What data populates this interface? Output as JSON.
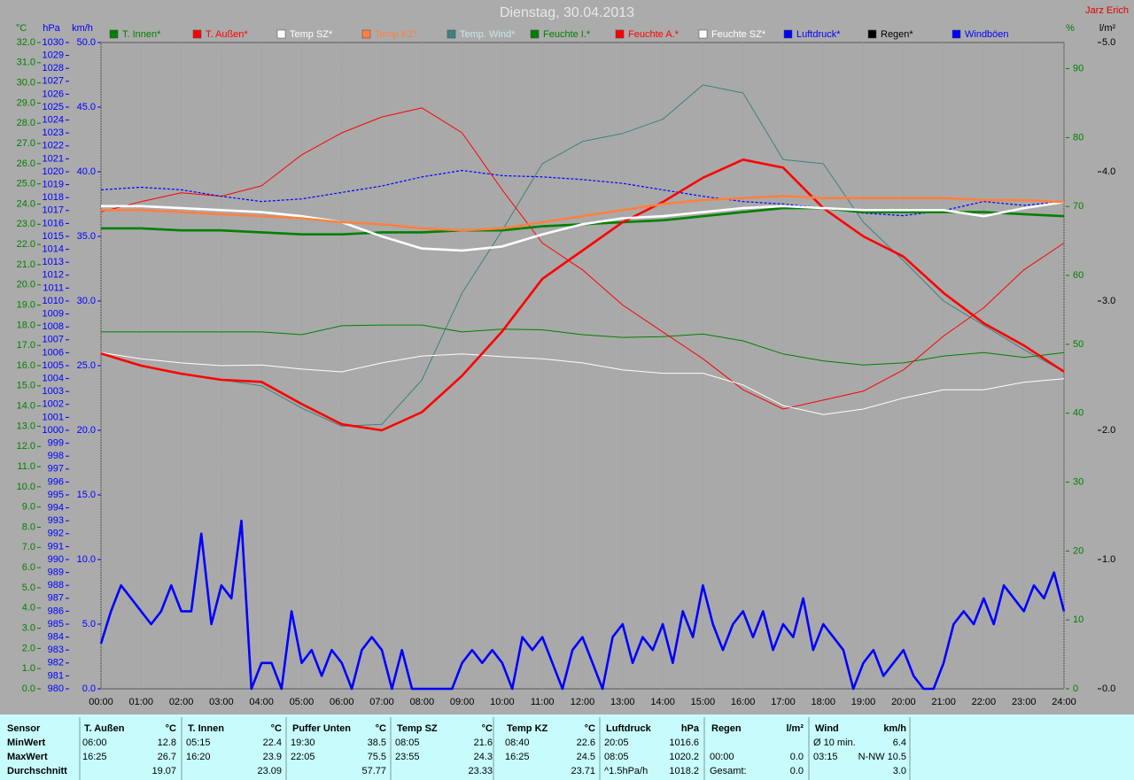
{
  "chart_data": {
    "type": "line",
    "title": "Dienstag, 30.04.2013",
    "author": "Jarz Erich",
    "xlim": [
      0,
      24
    ],
    "xticks": [
      {
        "value": 0,
        "label": "00:00"
      },
      {
        "value": 1,
        "label": "01:00"
      },
      {
        "value": 2,
        "label": "02:00"
      },
      {
        "value": 3,
        "label": "03:00"
      },
      {
        "value": 4,
        "label": "04:00"
      },
      {
        "value": 5,
        "label": "05:00"
      },
      {
        "value": 6,
        "label": "06:00"
      },
      {
        "value": 7,
        "label": "07:00"
      },
      {
        "value": 8,
        "label": "08:00"
      },
      {
        "value": 9,
        "label": "09:00"
      },
      {
        "value": 10,
        "label": "10:00"
      },
      {
        "value": 11,
        "label": "11:00"
      },
      {
        "value": 12,
        "label": "12:00"
      },
      {
        "value": 13,
        "label": "13:00"
      },
      {
        "value": 14,
        "label": "14:00"
      },
      {
        "value": 15,
        "label": "15:00"
      },
      {
        "value": 16,
        "label": "16:00"
      },
      {
        "value": 17,
        "label": "17:00"
      },
      {
        "value": 18,
        "label": "18:00"
      },
      {
        "value": 19,
        "label": "19:00"
      },
      {
        "value": 20,
        "label": "20:00"
      },
      {
        "value": 21,
        "label": "21:00"
      },
      {
        "value": 22,
        "label": "22:00"
      },
      {
        "value": 23,
        "label": "23:00"
      },
      {
        "value": 24,
        "label": "24:00"
      }
    ],
    "grid": true,
    "axes": [
      {
        "id": "y",
        "label": "°C",
        "color": "#008000",
        "lim": [
          0,
          32
        ],
        "ticks": [
          {
            "value": 0,
            "label": "0.0"
          },
          {
            "value": 1,
            "label": "1.0"
          },
          {
            "value": 2,
            "label": "2.0"
          },
          {
            "value": 3,
            "label": "3.0"
          },
          {
            "value": 4,
            "label": "4.0"
          },
          {
            "value": 5,
            "label": "5.0"
          },
          {
            "value": 6,
            "label": "6.0"
          },
          {
            "value": 7,
            "label": "7.0"
          },
          {
            "value": 8,
            "label": "8.0"
          },
          {
            "value": 9,
            "label": "9.0"
          },
          {
            "value": 10,
            "label": "10.0"
          },
          {
            "value": 11,
            "label": "11.0"
          },
          {
            "value": 12,
            "label": "12.0"
          },
          {
            "value": 13,
            "label": "13.0"
          },
          {
            "value": 14,
            "label": "14.0"
          },
          {
            "value": 15,
            "label": "15.0"
          },
          {
            "value": 16,
            "label": "16.0"
          },
          {
            "value": 17,
            "label": "17.0"
          },
          {
            "value": 18,
            "label": "18.0"
          },
          {
            "value": 19,
            "label": "19.0"
          },
          {
            "value": 20,
            "label": "20.0"
          },
          {
            "value": 21,
            "label": "21.0"
          },
          {
            "value": 22,
            "label": "22.0"
          },
          {
            "value": 23,
            "label": "23.0"
          },
          {
            "value": 24,
            "label": "24.0"
          },
          {
            "value": 25,
            "label": "25.0"
          },
          {
            "value": 26,
            "label": "26.0"
          },
          {
            "value": 27,
            "label": "27.0"
          },
          {
            "value": 28,
            "label": "28.0"
          },
          {
            "value": 29,
            "label": "29.0"
          },
          {
            "value": 30,
            "label": "30.0"
          },
          {
            "value": 31,
            "label": "31.0"
          },
          {
            "value": 32,
            "label": "32.0"
          }
        ]
      },
      {
        "id": "y2",
        "label": "hPa",
        "color": "#0000ff",
        "lim": [
          980,
          1030
        ],
        "ticks": [
          980,
          981,
          982,
          983,
          984,
          985,
          986,
          987,
          988,
          989,
          990,
          991,
          992,
          993,
          994,
          995,
          996,
          997,
          998,
          999,
          1000,
          1001,
          1002,
          1003,
          1004,
          1005,
          1006,
          1007,
          1008,
          1009,
          1010,
          1011,
          1012,
          1013,
          1014,
          1015,
          1016,
          1017,
          1018,
          1019,
          1020,
          1021,
          1022,
          1023,
          1024,
          1025,
          1026,
          1027,
          1028,
          1029,
          1030
        ]
      },
      {
        "id": "y3",
        "label": "km/h",
        "color": "#0000ff",
        "lim": [
          0,
          50
        ],
        "ticks": [
          {
            "value": 0,
            "label": "0.0"
          },
          {
            "value": 5,
            "label": "5.0"
          },
          {
            "value": 10,
            "label": "10.0"
          },
          {
            "value": 15,
            "label": "15.0"
          },
          {
            "value": 20,
            "label": "20.0"
          },
          {
            "value": 25,
            "label": "25.0"
          },
          {
            "value": 30,
            "label": "30.0"
          },
          {
            "value": 35,
            "label": "35.0"
          },
          {
            "value": 40,
            "label": "40.0"
          },
          {
            "value": 45,
            "label": "45.0"
          },
          {
            "value": 50,
            "label": "50.0"
          }
        ]
      },
      {
        "id": "y4",
        "label": "%",
        "color": "#008000",
        "lim": [
          0,
          93.8
        ],
        "ticks": [
          0,
          10,
          20,
          30,
          40,
          50,
          60,
          70,
          80,
          90
        ]
      },
      {
        "id": "y5",
        "label": "l/m²",
        "color": "#000000",
        "lim": [
          0,
          5
        ],
        "ticks": [
          {
            "value": 0,
            "label": "0.0"
          },
          {
            "value": 1,
            "label": "1.0"
          },
          {
            "value": 2,
            "label": "2.0"
          },
          {
            "value": 3,
            "label": "3.0"
          },
          {
            "value": 4,
            "label": "4.0"
          },
          {
            "value": 5,
            "label": "5.0"
          }
        ]
      }
    ],
    "x": [
      0,
      1,
      2,
      3,
      4,
      5,
      6,
      7,
      8,
      9,
      10,
      11,
      12,
      13,
      14,
      15,
      16,
      17,
      18,
      19,
      20,
      21,
      22,
      23,
      24
    ],
    "series": [
      {
        "name": "T. Innen*",
        "color": "#008000",
        "axis": "y",
        "style": "thick",
        "values": [
          22.8,
          22.8,
          22.7,
          22.7,
          22.6,
          22.5,
          22.5,
          22.6,
          22.6,
          22.7,
          22.7,
          22.9,
          23.0,
          23.1,
          23.2,
          23.4,
          23.6,
          23.8,
          23.8,
          23.6,
          23.6,
          23.6,
          23.6,
          23.5,
          23.4
        ]
      },
      {
        "name": "T. Außen*",
        "color": "#ff0000",
        "axis": "y",
        "style": "thick",
        "values": [
          16.6,
          16.0,
          15.6,
          15.3,
          15.2,
          14.1,
          13.1,
          12.8,
          13.7,
          15.5,
          17.7,
          20.3,
          21.7,
          23.1,
          24.1,
          25.3,
          26.2,
          25.8,
          23.8,
          22.4,
          21.4,
          19.6,
          18.1,
          17.0,
          15.7
        ]
      },
      {
        "name": "Temp SZ*",
        "color": "#ffffff",
        "axis": "y",
        "style": "thick",
        "values": [
          23.9,
          23.9,
          23.8,
          23.7,
          23.6,
          23.4,
          23.1,
          22.4,
          21.8,
          21.7,
          21.9,
          22.5,
          23.0,
          23.3,
          23.4,
          23.6,
          23.8,
          23.9,
          23.8,
          23.7,
          23.7,
          23.7,
          23.4,
          23.8,
          24.1
        ]
      },
      {
        "name": "Temp KZ*",
        "color": "#ff8040",
        "axis": "y",
        "style": "thick",
        "values": [
          23.7,
          23.7,
          23.6,
          23.5,
          23.4,
          23.3,
          23.1,
          23.0,
          22.8,
          22.7,
          22.8,
          23.1,
          23.4,
          23.7,
          24.0,
          24.2,
          24.3,
          24.4,
          24.3,
          24.3,
          24.3,
          24.3,
          24.2,
          24.2,
          24.1
        ]
      },
      {
        "name": "Temp. Wind*",
        "color": "#408080",
        "axis": "y",
        "style": "thin",
        "values": [
          16.6,
          16.0,
          15.6,
          15.3,
          15.0,
          13.9,
          13.0,
          13.1,
          15.3,
          19.6,
          22.7,
          26.0,
          27.1,
          27.5,
          28.2,
          29.9,
          29.5,
          26.2,
          26.0,
          23.1,
          21.2,
          19.2,
          18.0,
          16.8,
          15.7
        ]
      },
      {
        "name": "Feuchte I.*",
        "color": "#008000",
        "axis": "y4",
        "style": "thin",
        "values": [
          51.8,
          51.8,
          51.8,
          51.8,
          51.8,
          51.4,
          52.7,
          52.8,
          52.8,
          51.8,
          52.2,
          52.1,
          51.4,
          51.0,
          51.1,
          51.5,
          50.5,
          48.6,
          47.6,
          47.0,
          47.3,
          48.3,
          48.8,
          48.1,
          48.8
        ]
      },
      {
        "name": "Feuchte A.*",
        "color": "#ff0000",
        "axis": "y4",
        "style": "thin",
        "values": [
          69.2,
          70.7,
          72.0,
          71.5,
          73.0,
          77.5,
          80.7,
          83.0,
          84.3,
          80.7,
          72.4,
          64.7,
          60.8,
          55.7,
          51.8,
          47.9,
          43.4,
          40.6,
          41.9,
          43.2,
          46.3,
          51.2,
          55.3,
          60.8,
          64.7
        ]
      },
      {
        "name": "Feuchte SZ*",
        "color": "#ffffff",
        "axis": "y4",
        "style": "thin",
        "values": [
          48.8,
          47.9,
          47.3,
          46.9,
          47.0,
          46.4,
          46.0,
          47.3,
          48.3,
          48.6,
          48.2,
          47.9,
          47.3,
          46.3,
          45.8,
          45.8,
          44.1,
          41.1,
          39.8,
          40.6,
          42.2,
          43.4,
          43.4,
          44.5,
          45.0
        ]
      },
      {
        "name": "Luftdruck*",
        "color": "#0000ff",
        "axis": "y2",
        "style": "dotted",
        "values": [
          1018.6,
          1018.8,
          1018.6,
          1018.1,
          1017.7,
          1017.9,
          1018.4,
          1018.9,
          1019.6,
          1020.1,
          1019.7,
          1019.6,
          1019.4,
          1019.1,
          1018.6,
          1018.1,
          1017.7,
          1017.5,
          1017.2,
          1016.8,
          1016.6,
          1017.0,
          1017.7,
          1017.4,
          1017.7
        ]
      },
      {
        "name": "Regen*",
        "color": "#000000",
        "axis": "y5",
        "style": "thin"
      },
      {
        "name": "Windböen",
        "color": "#0000ff",
        "axis": "y3",
        "style": "thick",
        "x": [
          0,
          0.25,
          0.5,
          0.75,
          1,
          1.25,
          1.5,
          1.75,
          2,
          2.25,
          2.5,
          2.75,
          3,
          3.25,
          3.5,
          3.75,
          4,
          4.25,
          4.5,
          4.75,
          5,
          5.25,
          5.5,
          5.75,
          6,
          6.25,
          6.5,
          6.75,
          7,
          7.25,
          7.5,
          7.75,
          8,
          8.25,
          8.5,
          8.75,
          9,
          9.25,
          9.5,
          9.75,
          10,
          10.25,
          10.5,
          10.75,
          11,
          11.25,
          11.5,
          11.75,
          12,
          12.25,
          12.5,
          12.75,
          13,
          13.25,
          13.5,
          13.75,
          14,
          14.25,
          14.5,
          14.75,
          15,
          15.25,
          15.5,
          15.75,
          16,
          16.25,
          16.5,
          16.75,
          17,
          17.25,
          17.5,
          17.75,
          18,
          18.25,
          18.5,
          18.75,
          19,
          19.25,
          19.5,
          19.75,
          20,
          20.25,
          20.5,
          20.75,
          21,
          21.25,
          21.5,
          21.75,
          22,
          22.25,
          22.5,
          22.75,
          23,
          23.25,
          23.5,
          23.75,
          24
        ],
        "values": [
          3.5,
          6,
          8,
          7,
          6,
          5,
          6,
          8,
          6,
          6,
          12,
          5,
          8,
          7,
          13,
          0,
          2,
          2,
          0,
          6,
          2,
          3,
          1,
          3,
          2,
          0,
          3,
          4,
          3,
          0,
          3,
          0,
          0,
          0,
          0,
          0,
          2,
          3,
          2,
          3,
          2,
          0,
          4,
          3,
          4,
          2,
          0,
          3,
          4,
          2,
          0,
          4,
          5,
          2,
          4,
          3,
          5,
          2,
          6,
          4,
          8,
          5,
          3,
          5,
          6,
          4,
          6,
          3,
          5,
          4,
          7,
          3,
          5,
          4,
          3,
          0,
          2,
          3,
          1,
          2,
          3,
          1,
          0,
          0,
          2,
          5,
          6,
          5,
          7,
          5,
          8,
          7,
          6,
          8,
          7,
          9,
          6
        ]
      }
    ]
  },
  "stats": {
    "row_labels": [
      "Sensor",
      "MinWert",
      "MaxWert",
      "Durchschnitt"
    ],
    "blocks": [
      {
        "title": "T. Außen",
        "unit": "°C",
        "rows": [
          [
            "06:00",
            "12.8"
          ],
          [
            "16:25",
            "26.7"
          ],
          [
            null,
            "19.07"
          ]
        ]
      },
      {
        "title": "T. Innen",
        "unit": "°C",
        "rows": [
          [
            "05:15",
            "22.4"
          ],
          [
            "16:20",
            "23.9"
          ],
          [
            null,
            "23.09"
          ]
        ]
      },
      {
        "title": "Puffer Unten",
        "unit": "°C",
        "rows": [
          [
            "19:30",
            "38.5"
          ],
          [
            "22:05",
            "75.5"
          ],
          [
            null,
            "57.77"
          ]
        ]
      },
      {
        "title": "Temp SZ",
        "unit": "°C",
        "rows": [
          [
            "08:05",
            "21.6"
          ],
          [
            "23:55",
            "24.3"
          ],
          [
            null,
            "23.33"
          ]
        ]
      },
      {
        "title": "Temp KZ",
        "unit": "°C",
        "rows": [
          [
            "08:40",
            "22.6"
          ],
          [
            "16:25",
            "24.5"
          ],
          [
            null,
            "23.71"
          ]
        ]
      },
      {
        "title": "Luftdruck",
        "unit": "hPa",
        "rows": [
          [
            "20:05",
            "1016.6"
          ],
          [
            "08:05",
            "1020.2"
          ],
          [
            "^1.5hPa/h",
            "1018.2"
          ]
        ]
      },
      {
        "title": "Regen",
        "unit": "l/m²",
        "rows": [
          null,
          [
            "00:00",
            "0.0"
          ],
          [
            "Gesamt:",
            "0.0"
          ]
        ]
      },
      {
        "title": "Wind",
        "unit": "km/h",
        "rows": [
          [
            "Ø 10 min.",
            "6.4"
          ],
          [
            "03:15",
            "N-NW 10.5"
          ],
          [
            null,
            "3.0"
          ]
        ]
      }
    ]
  }
}
